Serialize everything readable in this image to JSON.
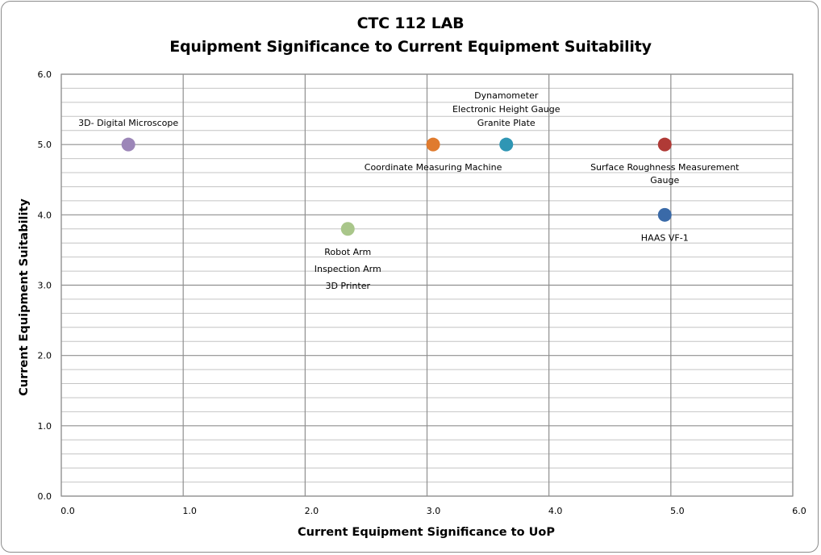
{
  "chart_data": {
    "type": "scatter",
    "title_lines": [
      "CTC 112 LAB",
      "Equipment Significance to Current Equipment Suitability"
    ],
    "xlabel": "Current Equipment Significance to UoP",
    "ylabel": "Current Equipment Suitability",
    "xlim": [
      0,
      6
    ],
    "ylim": [
      0,
      6
    ],
    "x_ticks": [
      "0.0",
      "1.0",
      "2.0",
      "3.0",
      "4.0",
      "5.0",
      "6.0"
    ],
    "y_ticks": [
      "0.0",
      "1.0",
      "2.0",
      "3.0",
      "4.0",
      "5.0",
      "6.0"
    ],
    "x_major_step": 1,
    "y_minor_step": 0.2,
    "grid": true,
    "points": [
      {
        "x": 0.55,
        "y": 5.0,
        "color": "#9c86b8",
        "labels": [
          "3D- Digital Microscope"
        ],
        "label_pos": "above"
      },
      {
        "x": 2.35,
        "y": 3.8,
        "color": "#a9c68a",
        "labels": [
          "Robot Arm",
          "Inspection Arm",
          "3D Printer"
        ],
        "label_pos": "below"
      },
      {
        "x": 3.05,
        "y": 5.0,
        "color": "#e07b2e",
        "labels": [
          "Coordinate Measuring Machine"
        ],
        "label_pos": "below"
      },
      {
        "x": 3.65,
        "y": 5.0,
        "color": "#2f96b4",
        "labels": [
          "Dynamometer",
          "Electronic Height Gauge",
          "Granite Plate"
        ],
        "label_pos": "above"
      },
      {
        "x": 4.95,
        "y": 5.0,
        "color": "#b03a36",
        "labels": [
          "Surface Roughness Measurement",
          "Gauge"
        ],
        "label_pos": "below"
      },
      {
        "x": 4.95,
        "y": 4.0,
        "color": "#3a6aa8",
        "labels": [
          "HAAS VF-1"
        ],
        "label_pos": "below"
      }
    ]
  }
}
